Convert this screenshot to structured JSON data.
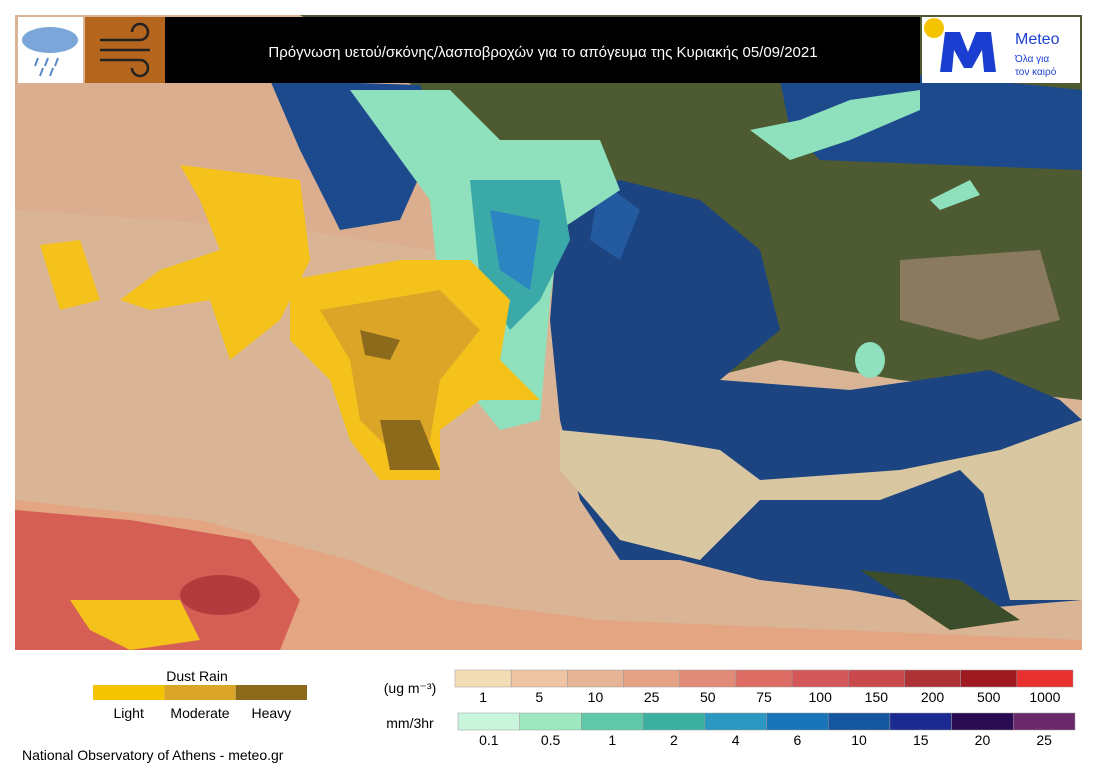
{
  "header": {
    "title": "Πρόγνωση υετού/σκόνης/λασποβροχών  για το απόγευμα της Κυριακής 05/09/2021",
    "logo": {
      "name": "Meteo",
      "tagline": [
        "Όλα για",
        "τον καιρό"
      ]
    }
  },
  "legend": {
    "dust_rain": {
      "title": "Dust Rain",
      "levels": [
        "Light",
        "Moderate",
        "Heavy"
      ]
    },
    "concentration": {
      "unit": "(ug m⁻³)",
      "labels": [
        "1",
        "5",
        "10",
        "25",
        "50",
        "75",
        "100",
        "150",
        "200",
        "500",
        "1000"
      ]
    },
    "precipitation": {
      "unit": "mm/3hr",
      "labels": [
        "0.1",
        "0.5",
        "1",
        "2",
        "4",
        "6",
        "10",
        "15",
        "20",
        "25"
      ]
    }
  },
  "footer": "National Observatory of Athens - meteo.gr"
}
